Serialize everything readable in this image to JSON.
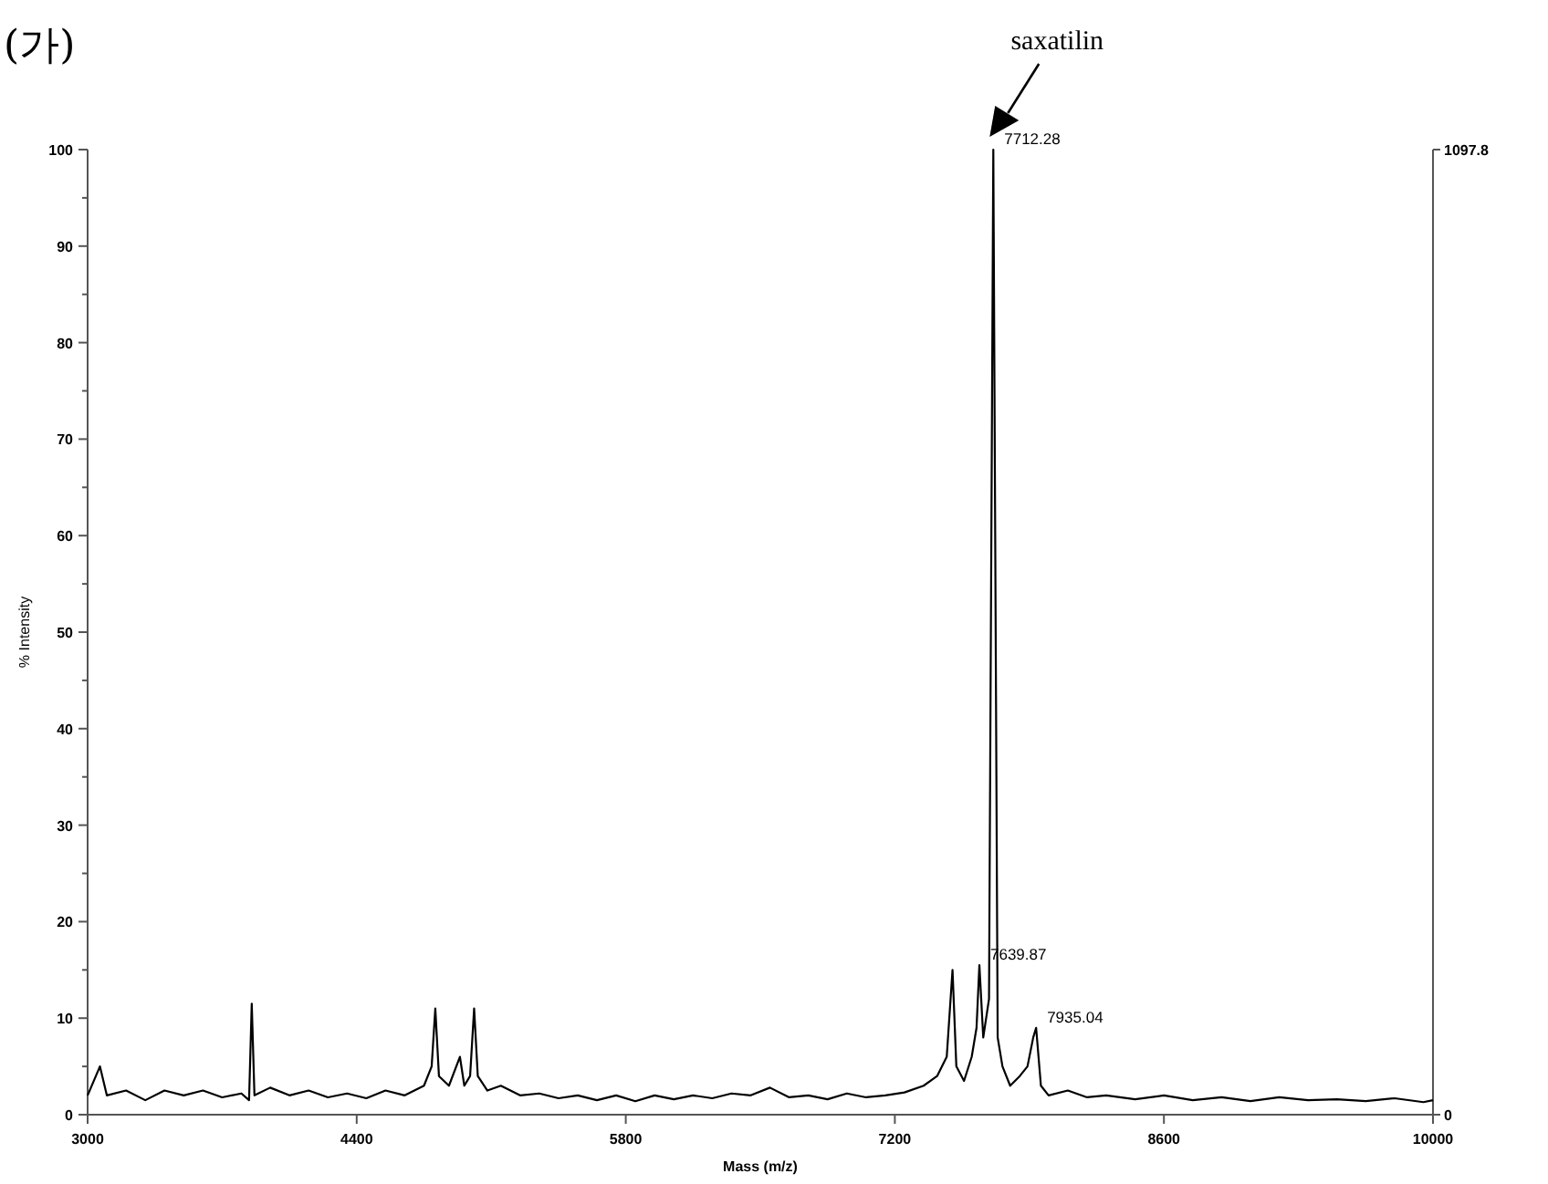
{
  "chart_data": {
    "type": "line",
    "title": "(가)",
    "xlabel": "Mass (m/z)",
    "ylabel": "% Intensity",
    "xlim": [
      3000,
      10000
    ],
    "xticks": [
      3000,
      4400,
      5800,
      7200,
      8600,
      10000
    ],
    "ylim": [
      0,
      100
    ],
    "yticks": [
      0,
      {
        "value": 5,
        "label": null
      },
      10,
      {
        "value": 15,
        "label": null
      },
      20,
      {
        "value": 25,
        "label": null
      },
      30,
      {
        "value": 35,
        "label": null
      },
      40,
      {
        "value": 45,
        "label": null
      },
      50,
      {
        "value": 55,
        "label": null
      },
      60,
      {
        "value": 65,
        "label": null
      },
      70,
      {
        "value": 75,
        "label": null
      },
      80,
      {
        "value": 85,
        "label": null
      },
      90,
      {
        "value": 95,
        "label": null
      },
      100
    ],
    "y2lim": [
      0,
      1097.8
    ],
    "y2ticks": [
      0,
      {
        "value": 1097.8,
        "label": "1097.8"
      }
    ],
    "grid": false,
    "marker": "none",
    "line_style": "solid",
    "annotations": [
      "saxatilin",
      {
        "text": "7712.28",
        "x": 7712.28,
        "y": 100
      },
      {
        "text": "7639.87",
        "x": 7639.87,
        "y": 15.5
      },
      {
        "text": "7935.04",
        "x": 7935.04,
        "y": 9
      }
    ],
    "series": [
      {
        "color": "#000000",
        "x": [
          3000,
          3064,
          3100,
          3200,
          3300,
          3400,
          3500,
          3600,
          3700,
          3800,
          3840,
          3854,
          3868,
          3950,
          4050,
          4150,
          4250,
          4350,
          4450,
          4550,
          4650,
          4750,
          4790,
          4809,
          4828,
          4880,
          4937,
          4960,
          4990,
          5011,
          5030,
          5080,
          5150,
          5250,
          5350,
          5450,
          5550,
          5650,
          5750,
          5850,
          5950,
          6050,
          6150,
          6250,
          6350,
          6450,
          6550,
          6650,
          6750,
          6850,
          6950,
          7050,
          7150,
          7250,
          7350,
          7420,
          7470,
          7500,
          7520,
          7560,
          7600,
          7625,
          7639.87,
          7660,
          7690,
          7712.28,
          7735,
          7760,
          7800,
          7850,
          7890,
          7920,
          7935.04,
          7960,
          8000,
          8100,
          8200,
          8300,
          8450,
          8600,
          8750,
          8900,
          9050,
          9200,
          9350,
          9500,
          9650,
          9800,
          9950,
          10000
        ],
        "values": [
          2,
          5,
          2,
          2.5,
          1.5,
          2.5,
          2,
          2.5,
          1.8,
          2.2,
          1.5,
          11.5,
          2,
          2.8,
          2,
          2.5,
          1.8,
          2.2,
          1.7,
          2.5,
          2,
          3,
          5,
          11,
          4,
          3,
          6,
          3,
          4,
          11,
          4,
          2.5,
          3,
          2,
          2.2,
          1.7,
          2,
          1.5,
          2,
          1.4,
          2,
          1.6,
          2,
          1.7,
          2.2,
          2,
          2.8,
          1.8,
          2,
          1.6,
          2.2,
          1.8,
          2,
          2.3,
          3,
          4,
          6,
          15,
          5,
          3.5,
          6,
          9,
          15.5,
          8,
          12,
          100,
          8,
          5,
          3,
          4,
          5,
          8,
          9,
          3,
          2,
          2.5,
          1.8,
          2,
          1.6,
          2,
          1.5,
          1.8,
          1.4,
          1.8,
          1.5,
          1.6,
          1.4,
          1.7,
          1.3,
          1.5
        ]
      }
    ]
  }
}
